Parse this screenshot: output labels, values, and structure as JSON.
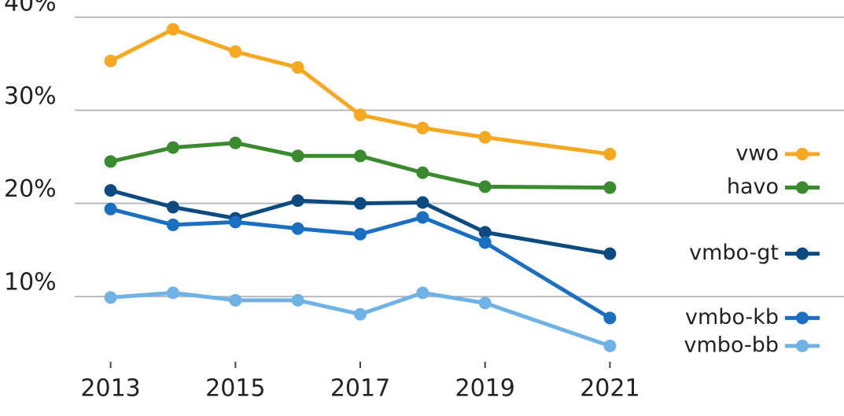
{
  "chart_data": {
    "type": "line",
    "x": [
      2013,
      2014,
      2015,
      2016,
      2017,
      2018,
      2019,
      2021
    ],
    "series": [
      {
        "name": "vwo",
        "color": "#f7a823",
        "values": [
          35.3,
          38.7,
          36.3,
          34.6,
          29.5,
          28.1,
          27.1,
          25.3
        ]
      },
      {
        "name": "havo",
        "color": "#3a8a2e",
        "values": [
          24.5,
          26.0,
          26.5,
          25.1,
          25.1,
          23.3,
          21.8,
          21.7
        ]
      },
      {
        "name": "vmbo-gt",
        "color": "#0d4a80",
        "values": [
          21.4,
          19.6,
          18.4,
          20.3,
          20.0,
          20.1,
          16.9,
          14.6
        ]
      },
      {
        "name": "vmbo-kb",
        "color": "#1a6fc0",
        "values": [
          19.4,
          17.7,
          18.0,
          17.3,
          16.7,
          18.5,
          15.8,
          7.7
        ]
      },
      {
        "name": "vmbo-bb",
        "color": "#6fb3e6",
        "values": [
          9.9,
          10.4,
          9.6,
          9.6,
          8.1,
          10.4,
          9.3,
          4.7
        ]
      }
    ],
    "xlim": [
      2012.4,
      2021.6
    ],
    "xticks": [
      2013,
      2015,
      2017,
      2019,
      2021
    ],
    "ylim": [
      3,
      41
    ],
    "yticks": [
      {
        "value": 10,
        "label": "10%"
      },
      {
        "value": 20,
        "label": "20%"
      },
      {
        "value": 30,
        "label": "30%"
      },
      {
        "value": 40,
        "label": "40%"
      }
    ],
    "grid": true
  }
}
